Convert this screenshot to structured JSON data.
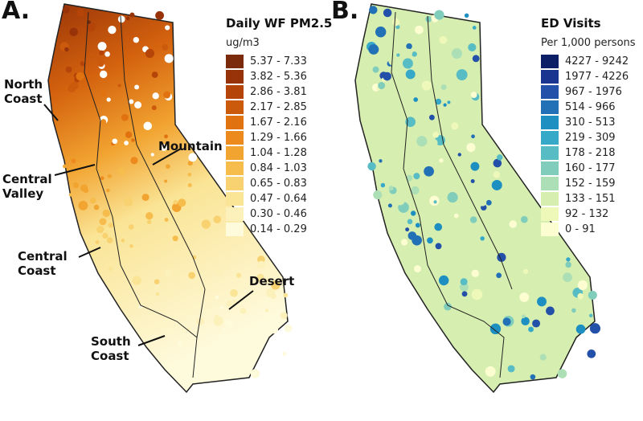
{
  "panel_a": {
    "letter": "A.",
    "legend_title": "Daily WF PM2.5",
    "legend_unit": "ug/m3",
    "classes": [
      {
        "label": "5.37 - 7.33",
        "color": "#7b2a0c"
      },
      {
        "label": "3.82 - 5.36",
        "color": "#983309"
      },
      {
        "label": "2.86 - 3.81",
        "color": "#b54409"
      },
      {
        "label": "2.17 - 2.85",
        "color": "#cc5a0c"
      },
      {
        "label": "1.67 - 2.16",
        "color": "#e0720f"
      },
      {
        "label": "1.29 - 1.66",
        "color": "#ec8a1d"
      },
      {
        "label": "1.04 - 1.28",
        "color": "#f2a431"
      },
      {
        "label": "0.84 - 1.03",
        "color": "#f6bd4c"
      },
      {
        "label": "0.65 - 0.83",
        "color": "#f8d270"
      },
      {
        "label": "0.47 - 0.64",
        "color": "#fae495"
      },
      {
        "label": "0.30 - 0.46",
        "color": "#fcf0bb"
      },
      {
        "label": "0.14 - 0.29",
        "color": "#fefadc"
      }
    ],
    "regions": {
      "north_coast": [
        "North",
        "Coast"
      ],
      "central_valley": [
        "Central",
        "Valley"
      ],
      "mountain": [
        "Mountain"
      ],
      "central_coast": [
        "Central",
        "Coast"
      ],
      "desert": [
        "Desert"
      ],
      "south_coast": [
        "South",
        "Coast"
      ]
    }
  },
  "panel_b": {
    "letter": "B.",
    "legend_title": "ED Visits",
    "legend_unit": "Per 1,000 persons",
    "classes": [
      {
        "label": "4227 - 9242",
        "color": "#0c1f66"
      },
      {
        "label": "1977 - 4226",
        "color": "#1a3590"
      },
      {
        "label": "967 - 1976",
        "color": "#2350a8"
      },
      {
        "label": "514 - 966",
        "color": "#2270b5"
      },
      {
        "label": "310 - 513",
        "color": "#1d8fc0"
      },
      {
        "label": "219 - 309",
        "color": "#36a8c8"
      },
      {
        "label": "178 - 218",
        "color": "#58bcc4"
      },
      {
        "label": "160 - 177",
        "color": "#80cdbb"
      },
      {
        "label": "152 - 159",
        "color": "#addfb6"
      },
      {
        "label": "133 - 151",
        "color": "#d6eeb0"
      },
      {
        "label": "92 - 132",
        "color": "#eef8b8"
      },
      {
        "label": "0 - 91",
        "color": "#fdfdd2"
      }
    ]
  }
}
